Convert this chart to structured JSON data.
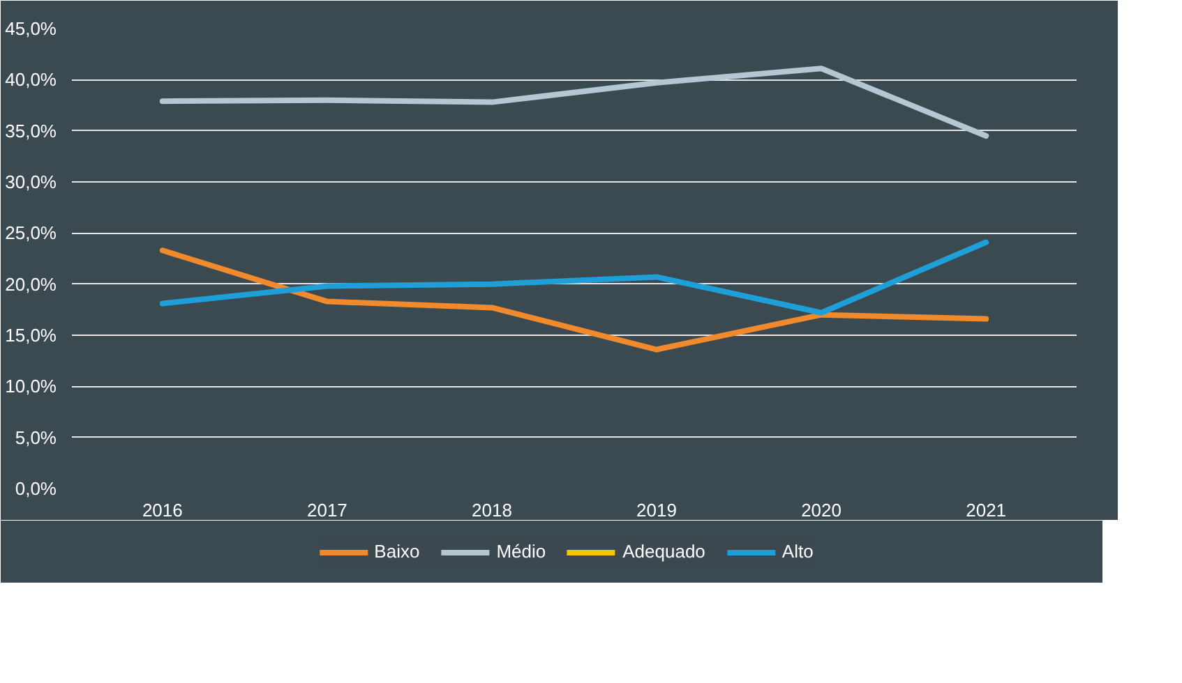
{
  "chart_data": {
    "type": "line",
    "categories": [
      "2016",
      "2017",
      "2018",
      "2019",
      "2020",
      "2021"
    ],
    "series": [
      {
        "name": "Baixo",
        "color": "#f08a2c",
        "values": [
          23.3,
          18.3,
          17.7,
          13.6,
          17.0,
          16.6
        ]
      },
      {
        "name": "Médio",
        "color": "#b4c7d3",
        "values": [
          37.9,
          38.0,
          37.8,
          39.7,
          41.1,
          34.5
        ]
      },
      {
        "name": "Adequado",
        "color": "#f5c400",
        "values": [
          null,
          null,
          null,
          null,
          null,
          null
        ]
      },
      {
        "name": "Alto",
        "color": "#1e9fd8",
        "values": [
          18.1,
          19.8,
          20.0,
          20.7,
          17.2,
          24.1
        ]
      }
    ],
    "ylim": [
      0,
      45
    ],
    "yticks": [
      {
        "value": 0,
        "label": "0,0%"
      },
      {
        "value": 5,
        "label": "5,0%"
      },
      {
        "value": 10,
        "label": "10,0%"
      },
      {
        "value": 15,
        "label": "15,0%"
      },
      {
        "value": 20,
        "label": "20,0%"
      },
      {
        "value": 25,
        "label": "25,0%"
      },
      {
        "value": 30,
        "label": "30,0%"
      },
      {
        "value": 35,
        "label": "35,0%"
      },
      {
        "value": 40,
        "label": "40,0%"
      },
      {
        "value": 45,
        "label": "45,0%"
      }
    ],
    "grid": "y",
    "legend": "bottom",
    "marker": "none",
    "line_style": "solid"
  }
}
